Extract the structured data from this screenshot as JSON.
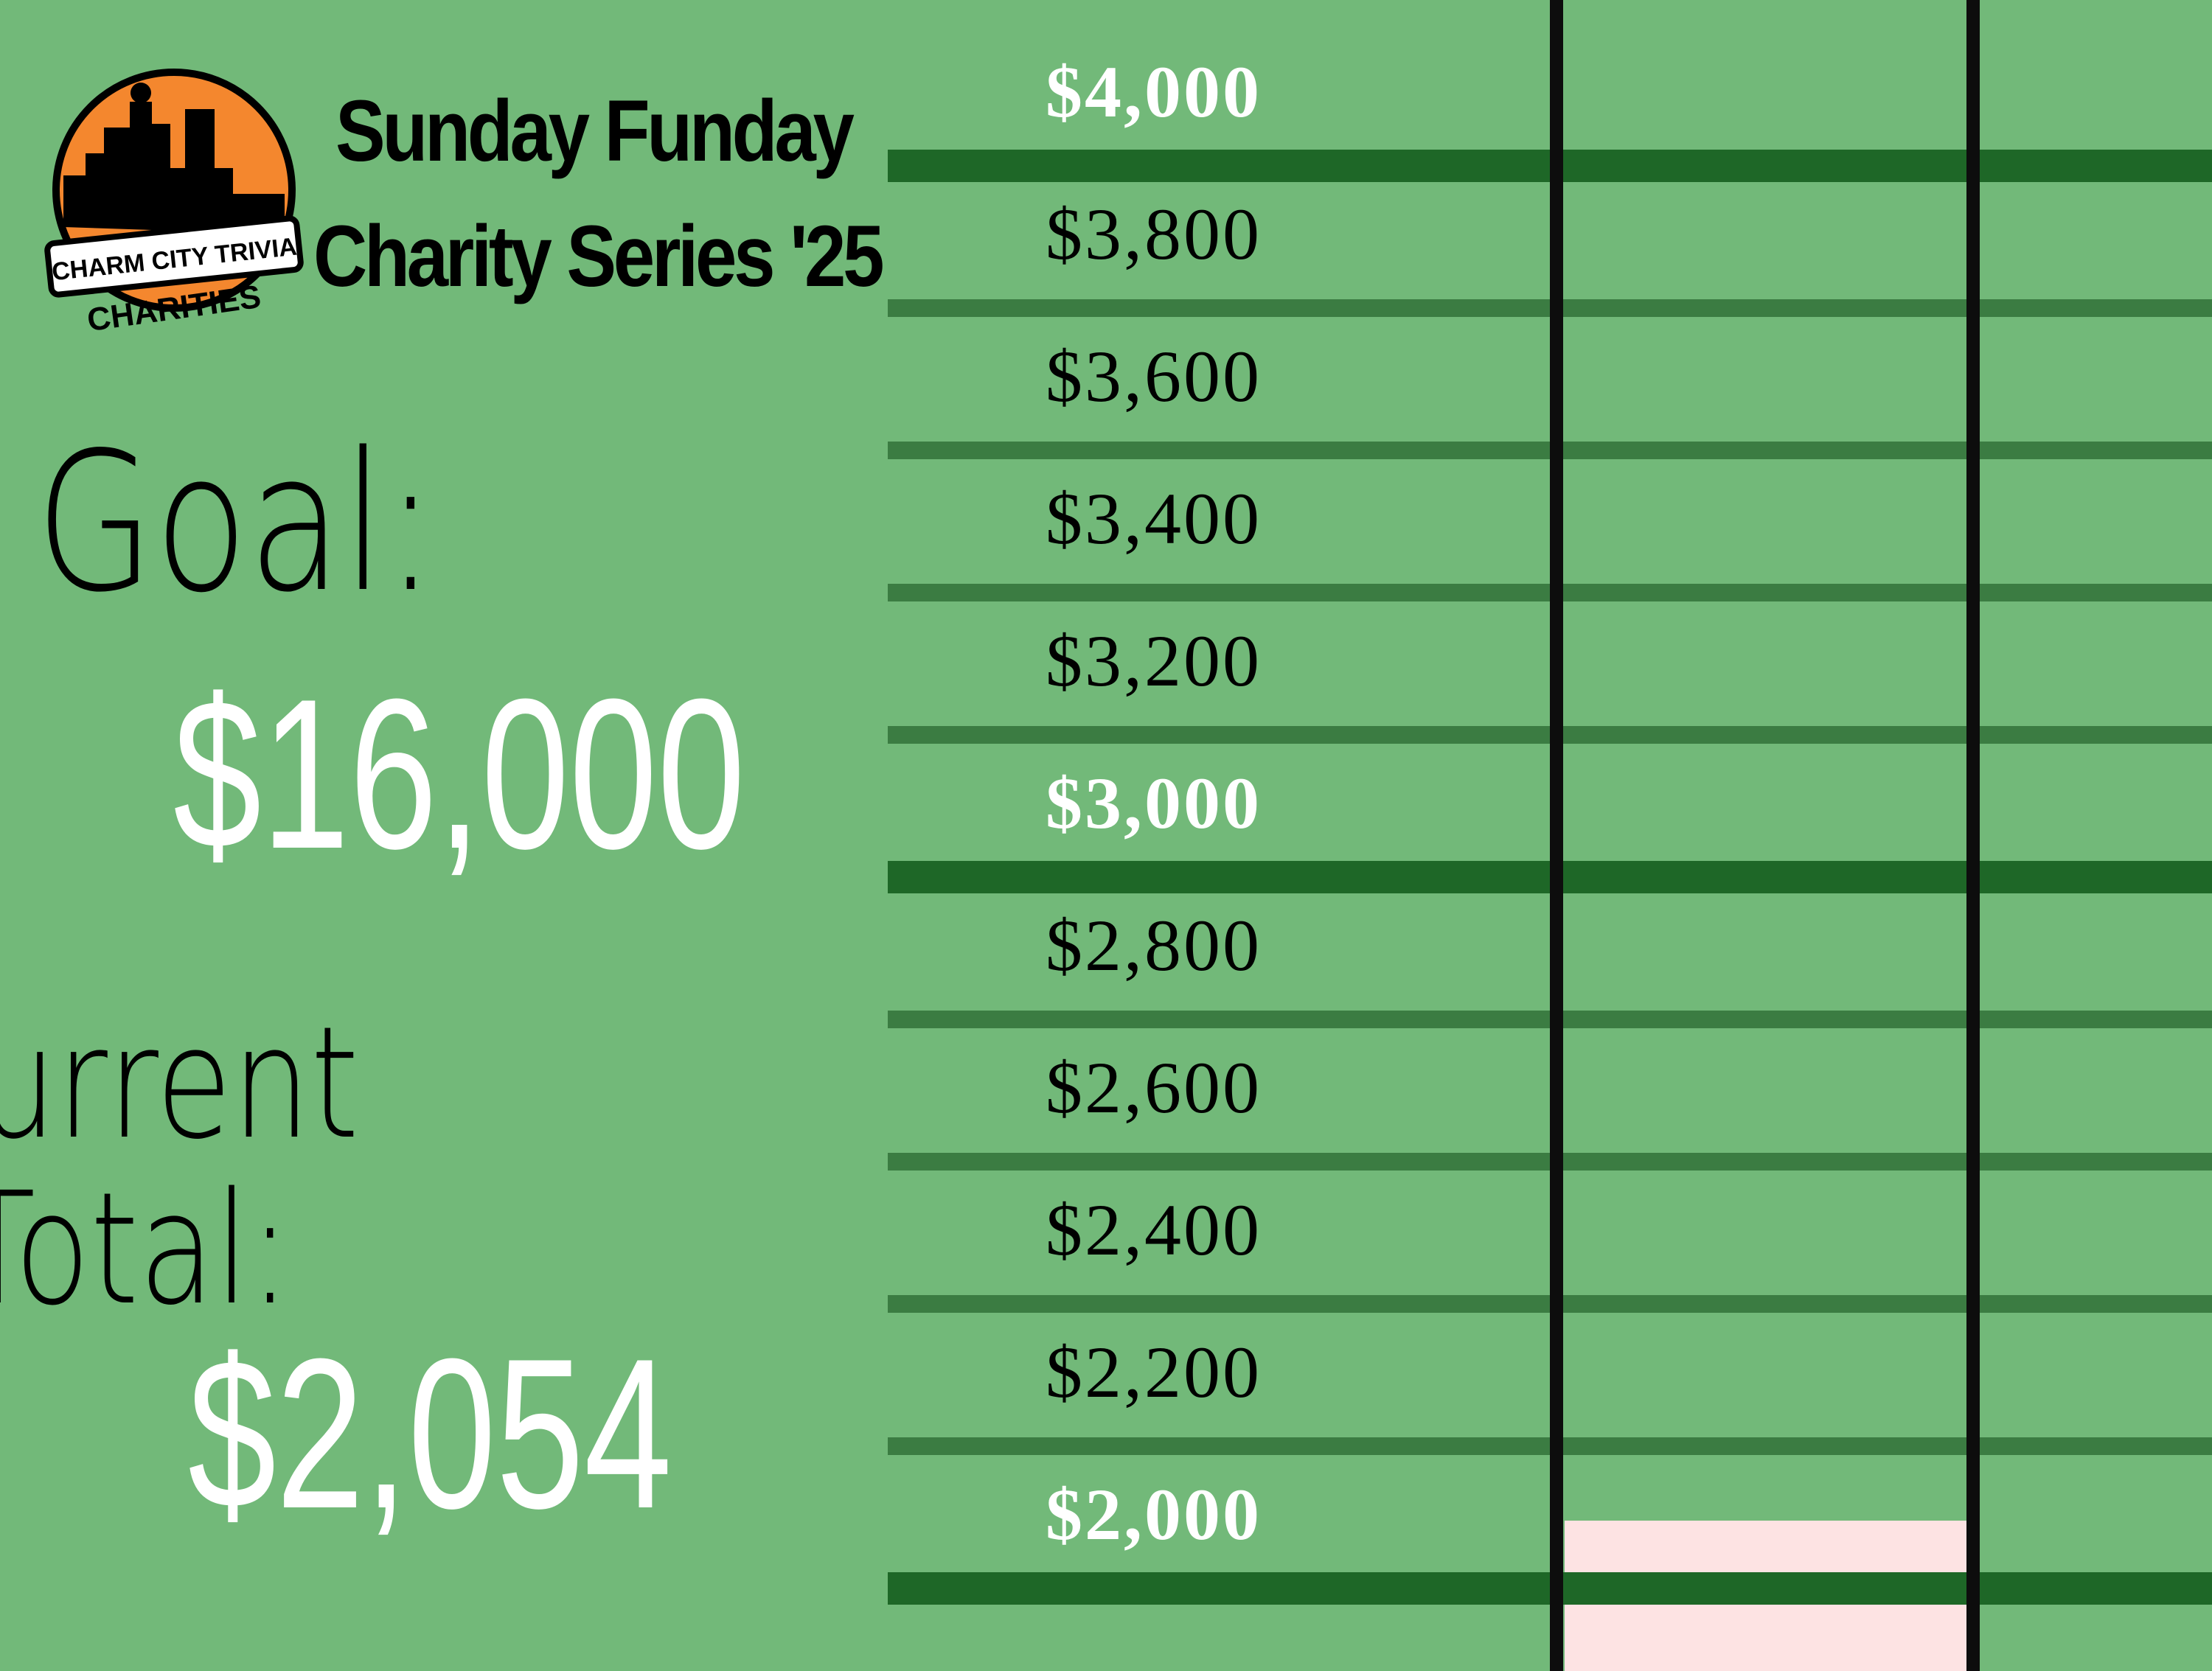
{
  "brand": {
    "logo_banner": "CHARM CITY TRIVIA",
    "logo_arc": "CHARITIES",
    "colors": {
      "orange": "#f4872e",
      "background": "#72b979",
      "dark_green": "#1e6727",
      "fill": "#fde3e3"
    }
  },
  "header": {
    "title_line1": "Sunday Funday",
    "title_line2": "Charity Series '25"
  },
  "goal": {
    "label": "Goal:",
    "amount": "$16,000",
    "value": 16000
  },
  "current": {
    "label_line1": "Current",
    "label_line2": "Total:",
    "amount": "$2,054",
    "value": 2054
  },
  "scale": {
    "ticks": [
      {
        "label": "$4,000",
        "value": 4000,
        "major": true
      },
      {
        "label": "$3,800",
        "value": 3800,
        "major": false
      },
      {
        "label": "$3,600",
        "value": 3600,
        "major": false
      },
      {
        "label": "$3,400",
        "value": 3400,
        "major": false
      },
      {
        "label": "$3,200",
        "value": 3200,
        "major": false
      },
      {
        "label": "$3,000",
        "value": 3000,
        "major": true
      },
      {
        "label": "$2,800",
        "value": 2800,
        "major": false
      },
      {
        "label": "$2,600",
        "value": 2600,
        "major": false
      },
      {
        "label": "$2,400",
        "value": 2400,
        "major": false
      },
      {
        "label": "$2,200",
        "value": 2200,
        "major": false
      },
      {
        "label": "$2,000",
        "value": 2000,
        "major": true
      }
    ]
  }
}
